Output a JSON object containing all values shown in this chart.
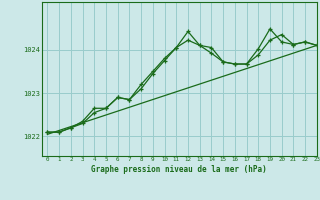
{
  "xlabel": "Graphe pression niveau de la mer (hPa)",
  "bg_color": "#cce8e8",
  "grid_color": "#99cccc",
  "line_color": "#1a6b1a",
  "xlim": [
    -0.5,
    23
  ],
  "ylim": [
    1021.55,
    1025.1
  ],
  "yticks": [
    1022,
    1023,
    1024
  ],
  "xticks": [
    0,
    1,
    2,
    3,
    4,
    5,
    6,
    7,
    8,
    9,
    10,
    11,
    12,
    13,
    14,
    15,
    16,
    17,
    18,
    19,
    20,
    21,
    22,
    23
  ],
  "line1_x": [
    0,
    1,
    2,
    3,
    4,
    5,
    6,
    7,
    8,
    9,
    10,
    11,
    12,
    13,
    14,
    15,
    16,
    17,
    18,
    19,
    20,
    21,
    22,
    23
  ],
  "line1_y": [
    1022.1,
    1022.1,
    1022.2,
    1022.3,
    1022.55,
    1022.65,
    1022.9,
    1022.85,
    1023.1,
    1023.45,
    1023.75,
    1024.05,
    1024.22,
    1024.1,
    1023.92,
    1023.72,
    1023.67,
    1023.67,
    1023.88,
    1024.22,
    1024.35,
    1024.12,
    1024.18,
    1024.1
  ],
  "line2_x": [
    0,
    1,
    2,
    3,
    4,
    5,
    6,
    7,
    8,
    9,
    10,
    11,
    12,
    13,
    14,
    15,
    16,
    17,
    18,
    19,
    20,
    21,
    22,
    23
  ],
  "line2_y": [
    1022.1,
    1022.1,
    1022.2,
    1022.35,
    1022.65,
    1022.65,
    1022.9,
    1022.85,
    1023.2,
    1023.5,
    1023.8,
    1024.05,
    1024.42,
    1024.1,
    1024.05,
    1023.72,
    1023.67,
    1023.67,
    1024.02,
    1024.48,
    1024.18,
    1024.12,
    1024.18,
    1024.1
  ],
  "line3_x": [
    0,
    23
  ],
  "line3_y": [
    1022.05,
    1024.1
  ]
}
